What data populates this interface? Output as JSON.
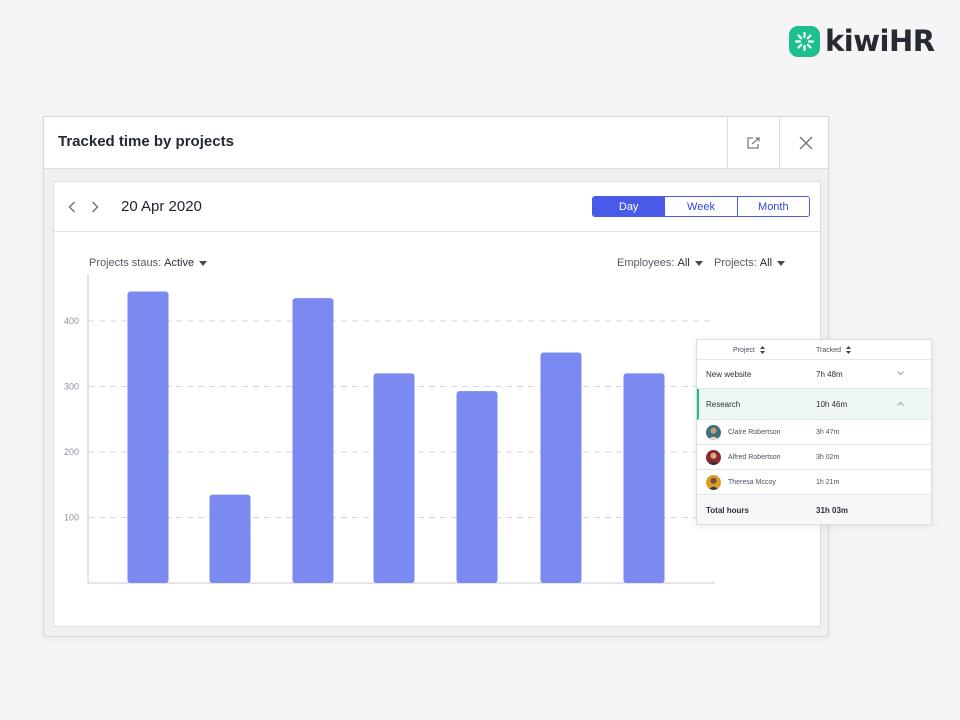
{
  "brand": {
    "name": "kiwiHR",
    "accent": "#1cc08f"
  },
  "window": {
    "title": "Tracked time by projects",
    "export_icon": "export-icon",
    "close_icon": "close-icon"
  },
  "toolbar": {
    "date": "20 Apr 2020",
    "prev_icon": "chevron-left-icon",
    "next_icon": "chevron-right-icon",
    "period_tabs": [
      {
        "label": "Day",
        "active": true
      },
      {
        "label": "Week",
        "active": false
      },
      {
        "label": "Month",
        "active": false
      }
    ]
  },
  "filters": {
    "status": {
      "label": "Projects staus:",
      "value": "Active"
    },
    "employees": {
      "label": "Employees:",
      "value": "All"
    },
    "projects": {
      "label": "Projects:",
      "value": "All"
    }
  },
  "chart_data": {
    "type": "bar",
    "title": "",
    "xlabel": "",
    "ylabel": "",
    "ylim": [
      0,
      470
    ],
    "yticks": [
      100,
      200,
      300,
      400
    ],
    "grid": true,
    "bar_color": "#7b8af0",
    "categories": [
      "",
      "",
      "",
      "",
      "",
      "",
      ""
    ],
    "values": [
      445,
      135,
      435,
      320,
      293,
      352,
      320
    ]
  },
  "project_table": {
    "headers": {
      "project": "Project",
      "tracked": "Tracked"
    },
    "rows": [
      {
        "project": "New website",
        "tracked": "7h 48m",
        "expanded": false
      },
      {
        "project": "Research",
        "tracked": "10h 46m",
        "expanded": true,
        "members": [
          {
            "name": "Claire Robertson",
            "tracked": "3h 47m"
          },
          {
            "name": "Alfred Robertson",
            "tracked": "3h 02m"
          },
          {
            "name": "Theresa Mccoy",
            "tracked": "1h 21m"
          }
        ]
      }
    ],
    "total": {
      "label": "Total hours",
      "value": "31h 03m"
    }
  }
}
